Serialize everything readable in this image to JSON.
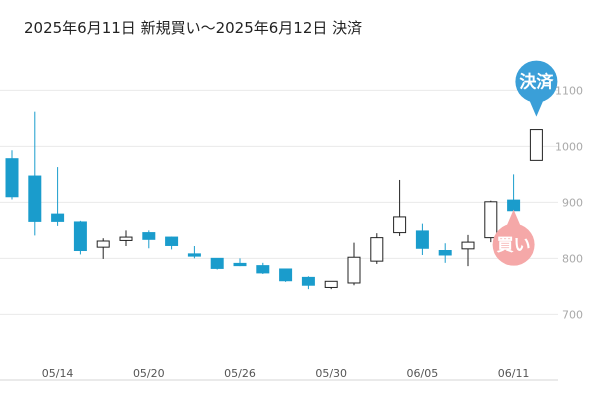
{
  "title": "2025年6月11日 新規買い〜2025年6月12日 決済",
  "chart_data": {
    "type": "candlestick",
    "y_ticks": [
      "700",
      "800",
      "900",
      "1000",
      "1100"
    ],
    "ylim": [
      622,
      1190
    ],
    "x_ticks": [
      {
        "index": 2,
        "label": "05/14"
      },
      {
        "index": 6,
        "label": "05/20"
      },
      {
        "index": 10,
        "label": "05/26"
      },
      {
        "index": 14,
        "label": "05/30"
      },
      {
        "index": 18,
        "label": "06/05"
      },
      {
        "index": 22,
        "label": "06/11"
      }
    ],
    "up_color": "#ffffff",
    "down_color": "#1a9ccc",
    "candles": [
      {
        "o": 978,
        "h": 993,
        "c": 910,
        "l": 905
      },
      {
        "o": 947,
        "h": 1062,
        "c": 866,
        "l": 841
      },
      {
        "o": 879,
        "h": 963,
        "c": 866,
        "l": 858
      },
      {
        "o": 865,
        "h": 867,
        "c": 814,
        "l": 807
      },
      {
        "o": 820,
        "h": 836,
        "c": 831,
        "l": 799
      },
      {
        "o": 832,
        "h": 850,
        "c": 838,
        "l": 822
      },
      {
        "o": 846,
        "h": 850,
        "c": 834,
        "l": 818
      },
      {
        "o": 838,
        "h": 839,
        "c": 823,
        "l": 816
      },
      {
        "o": 808,
        "h": 822,
        "c": 804,
        "l": 800
      },
      {
        "o": 800,
        "h": 800,
        "c": 782,
        "l": 780
      },
      {
        "o": 791,
        "h": 800,
        "c": 787,
        "l": 786
      },
      {
        "o": 787,
        "h": 792,
        "c": 774,
        "l": 772
      },
      {
        "o": 781,
        "h": 781,
        "c": 760,
        "l": 758
      },
      {
        "o": 766,
        "h": 768,
        "c": 752,
        "l": 745
      },
      {
        "o": 748,
        "h": 758,
        "c": 759,
        "l": 745
      },
      {
        "o": 756,
        "h": 828,
        "c": 802,
        "l": 752
      },
      {
        "o": 795,
        "h": 845,
        "c": 837,
        "l": 790
      },
      {
        "o": 846,
        "h": 940,
        "c": 874,
        "l": 840
      },
      {
        "o": 849,
        "h": 862,
        "c": 818,
        "l": 806
      },
      {
        "o": 814,
        "h": 827,
        "c": 806,
        "l": 792
      },
      {
        "o": 817,
        "h": 842,
        "c": 829,
        "l": 786
      },
      {
        "o": 837,
        "h": 903,
        "c": 901,
        "l": 829
      },
      {
        "o": 904,
        "h": 950,
        "c": 885,
        "l": 878
      },
      {
        "o": 975,
        "h": 1030,
        "c": 1030,
        "l": 975
      }
    ],
    "markers": [
      {
        "label": "買い",
        "index": 22,
        "color": "#f5a8a8"
      },
      {
        "label": "決済",
        "index": 23,
        "color": "#3a9fd8"
      }
    ]
  }
}
